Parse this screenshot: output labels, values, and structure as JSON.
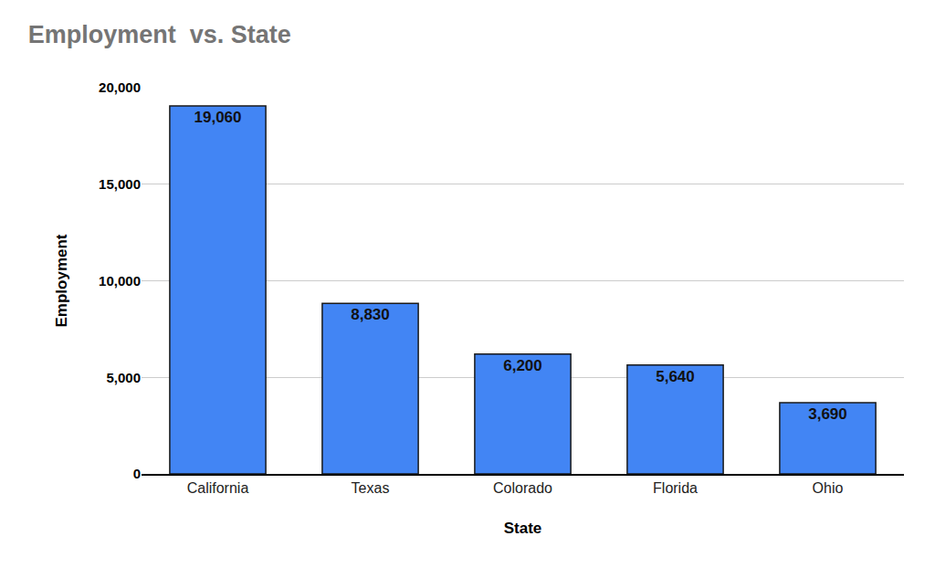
{
  "chart_data": {
    "type": "bar",
    "title": "Employment  vs. State",
    "x_label": "State",
    "y_label": "Employment",
    "categories": [
      "California",
      "Texas",
      "Colorado",
      "Florida",
      "Ohio"
    ],
    "values": [
      19060,
      8830,
      6200,
      5640,
      3690
    ],
    "value_labels": [
      "19,060",
      "8,830",
      "6,200",
      "5,640",
      "3,690"
    ],
    "data_labels": true,
    "color": "#4285f4",
    "ylim": [
      0,
      20000
    ],
    "yticks": [
      0,
      {
        "value": 5000,
        "label": "5,000"
      },
      {
        "value": 10000,
        "label": "10,000"
      },
      {
        "value": 15000,
        "label": "15,000"
      },
      {
        "value": 20000,
        "label": "20,000"
      }
    ],
    "grid": true
  }
}
